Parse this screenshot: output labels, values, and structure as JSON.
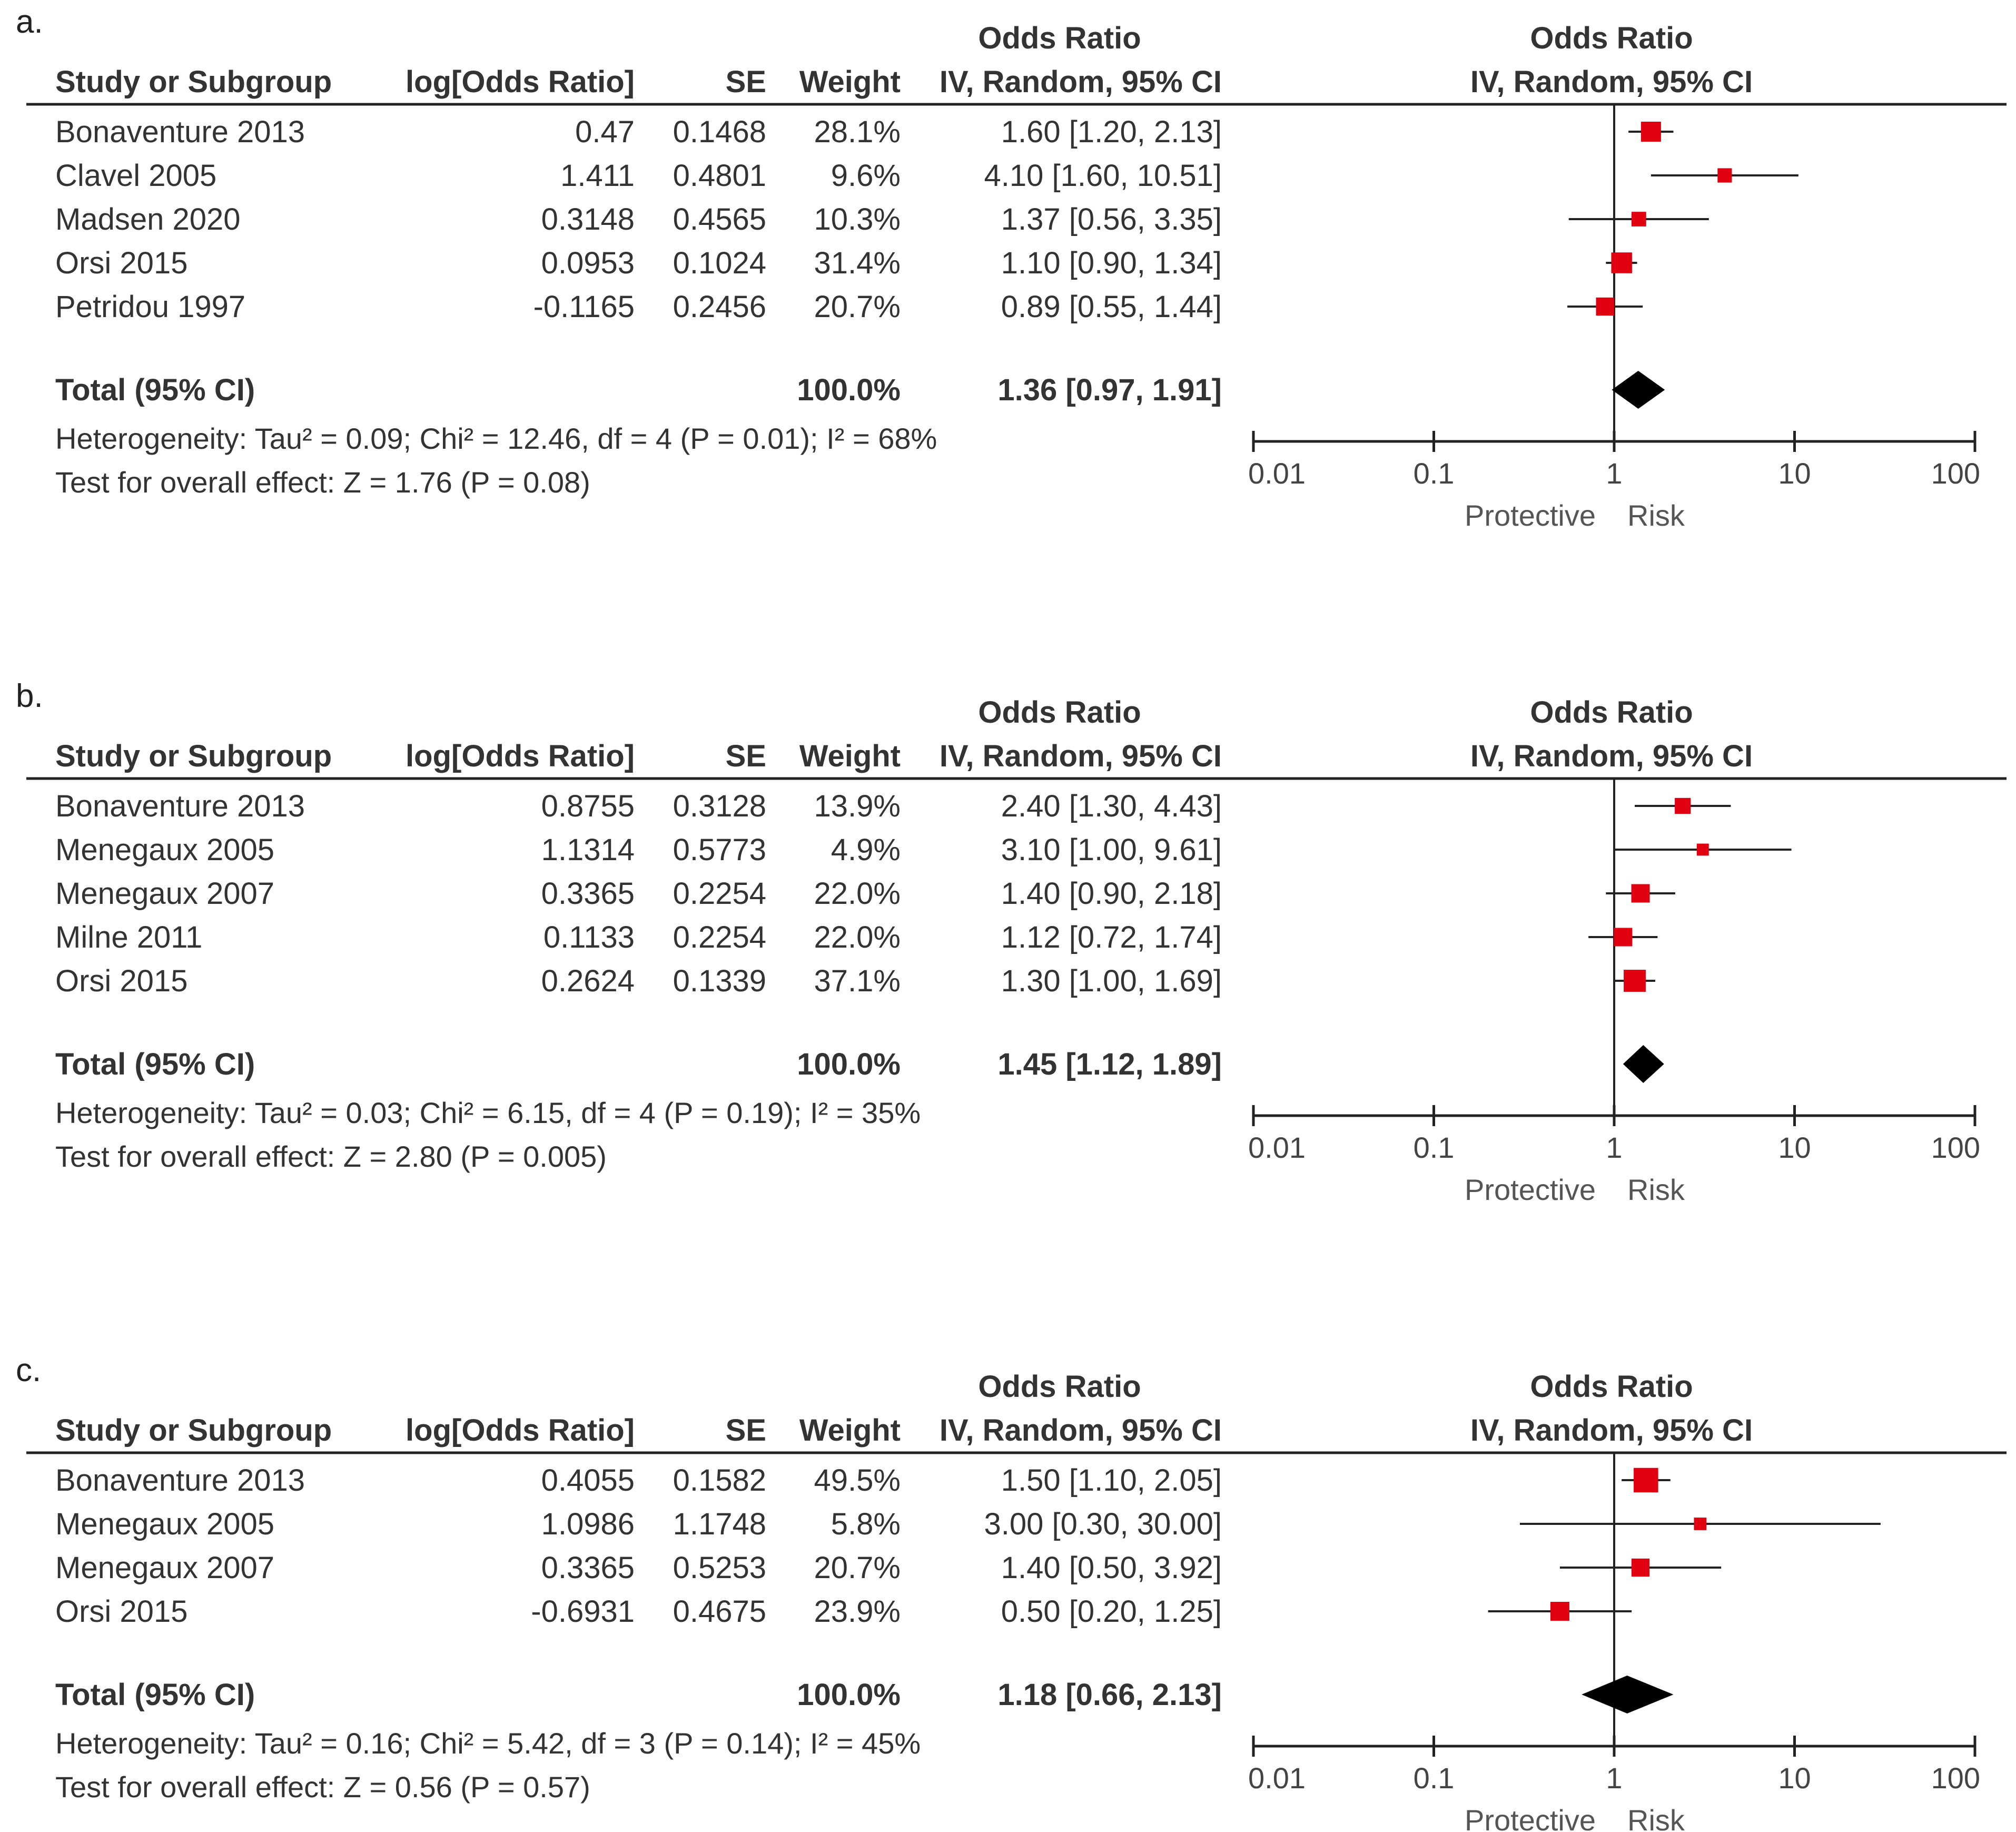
{
  "colors": {
    "marker": "#e0000f",
    "diamond": "#000000",
    "line": "#222222",
    "text": "#333333"
  },
  "columns": {
    "study": "Study or Subgroup",
    "log_or": "log[Odds Ratio]",
    "se": "SE",
    "weight": "Weight",
    "or_title": "Odds Ratio",
    "or_method": "IV, Random, 95% CI"
  },
  "axis": {
    "ticks": [
      0.01,
      0.1,
      1,
      10,
      100
    ],
    "tick_labels": [
      "0.01",
      "0.1",
      "1",
      "10",
      "100"
    ],
    "left_label": "Protective",
    "right_label": "Risk",
    "scale": "log10",
    "xlim": [
      0.01,
      100
    ]
  },
  "chart_data": [
    {
      "type": "forest",
      "label": "a.",
      "studies": [
        {
          "name": "Bonaventure 2013",
          "log_or": "0.47",
          "se": "0.1468",
          "weight": "28.1%",
          "or_text": "1.60 [1.20, 2.13]",
          "or": 1.6,
          "lo": 1.2,
          "hi": 2.13,
          "w": 28.1
        },
        {
          "name": "Clavel 2005",
          "log_or": "1.411",
          "se": "0.4801",
          "weight": "9.6%",
          "or_text": "4.10 [1.60, 10.51]",
          "or": 4.1,
          "lo": 1.6,
          "hi": 10.51,
          "w": 9.6
        },
        {
          "name": "Madsen 2020",
          "log_or": "0.3148",
          "se": "0.4565",
          "weight": "10.3%",
          "or_text": "1.37 [0.56, 3.35]",
          "or": 1.37,
          "lo": 0.56,
          "hi": 3.35,
          "w": 10.3
        },
        {
          "name": "Orsi 2015",
          "log_or": "0.0953",
          "se": "0.1024",
          "weight": "31.4%",
          "or_text": "1.10 [0.90, 1.34]",
          "or": 1.1,
          "lo": 0.9,
          "hi": 1.34,
          "w": 31.4
        },
        {
          "name": "Petridou 1997",
          "log_or": "-0.1165",
          "se": "0.2456",
          "weight": "20.7%",
          "or_text": "0.89 [0.55, 1.44]",
          "or": 0.89,
          "lo": 0.55,
          "hi": 1.44,
          "w": 20.7
        }
      ],
      "total": {
        "name": "Total (95% CI)",
        "weight": "100.0%",
        "or_text": "1.36 [0.97, 1.91]",
        "or": 1.36,
        "lo": 0.97,
        "hi": 1.91
      },
      "heterogeneity": "Heterogeneity: Tau² = 0.09; Chi² = 12.46, df = 4 (P = 0.01); I² = 68%",
      "overall": "Test for overall effect: Z = 1.76 (P = 0.08)"
    },
    {
      "type": "forest",
      "label": "b.",
      "studies": [
        {
          "name": "Bonaventure 2013",
          "log_or": "0.8755",
          "se": "0.3128",
          "weight": "13.9%",
          "or_text": "2.40 [1.30, 4.43]",
          "or": 2.4,
          "lo": 1.3,
          "hi": 4.43,
          "w": 13.9
        },
        {
          "name": "Menegaux 2005",
          "log_or": "1.1314",
          "se": "0.5773",
          "weight": "4.9%",
          "or_text": "3.10 [1.00, 9.61]",
          "or": 3.1,
          "lo": 1.0,
          "hi": 9.61,
          "w": 4.9
        },
        {
          "name": "Menegaux 2007",
          "log_or": "0.3365",
          "se": "0.2254",
          "weight": "22.0%",
          "or_text": "1.40 [0.90, 2.18]",
          "or": 1.4,
          "lo": 0.9,
          "hi": 2.18,
          "w": 22.0
        },
        {
          "name": "Milne 2011",
          "log_or": "0.1133",
          "se": "0.2254",
          "weight": "22.0%",
          "or_text": "1.12 [0.72, 1.74]",
          "or": 1.12,
          "lo": 0.72,
          "hi": 1.74,
          "w": 22.0
        },
        {
          "name": "Orsi 2015",
          "log_or": "0.2624",
          "se": "0.1339",
          "weight": "37.1%",
          "or_text": "1.30 [1.00, 1.69]",
          "or": 1.3,
          "lo": 1.0,
          "hi": 1.69,
          "w": 37.1
        }
      ],
      "total": {
        "name": "Total (95% CI)",
        "weight": "100.0%",
        "or_text": "1.45 [1.12, 1.89]",
        "or": 1.45,
        "lo": 1.12,
        "hi": 1.89
      },
      "heterogeneity": "Heterogeneity: Tau² = 0.03; Chi² = 6.15, df = 4 (P = 0.19); I² = 35%",
      "overall": "Test for overall effect: Z = 2.80 (P = 0.005)"
    },
    {
      "type": "forest",
      "label": "c.",
      "studies": [
        {
          "name": "Bonaventure 2013",
          "log_or": "0.4055",
          "se": "0.1582",
          "weight": "49.5%",
          "or_text": "1.50 [1.10, 2.05]",
          "or": 1.5,
          "lo": 1.1,
          "hi": 2.05,
          "w": 49.5
        },
        {
          "name": "Menegaux 2005",
          "log_or": "1.0986",
          "se": "1.1748",
          "weight": "5.8%",
          "or_text": "3.00 [0.30, 30.00]",
          "or": 3.0,
          "lo": 0.3,
          "hi": 30.0,
          "w": 5.8
        },
        {
          "name": "Menegaux 2007",
          "log_or": "0.3365",
          "se": "0.5253",
          "weight": "20.7%",
          "or_text": "1.40 [0.50, 3.92]",
          "or": 1.4,
          "lo": 0.5,
          "hi": 3.92,
          "w": 20.7
        },
        {
          "name": "Orsi 2015",
          "log_or": "-0.6931",
          "se": "0.4675",
          "weight": "23.9%",
          "or_text": "0.50 [0.20, 1.25]",
          "or": 0.5,
          "lo": 0.2,
          "hi": 1.25,
          "w": 23.9
        }
      ],
      "total": {
        "name": "Total (95% CI)",
        "weight": "100.0%",
        "or_text": "1.18 [0.66, 2.13]",
        "or": 1.18,
        "lo": 0.66,
        "hi": 2.13
      },
      "heterogeneity": "Heterogeneity: Tau² = 0.16; Chi² = 5.42, df = 3 (P = 0.14); I² = 45%",
      "overall": "Test for overall effect: Z = 0.56 (P = 0.57)"
    }
  ]
}
